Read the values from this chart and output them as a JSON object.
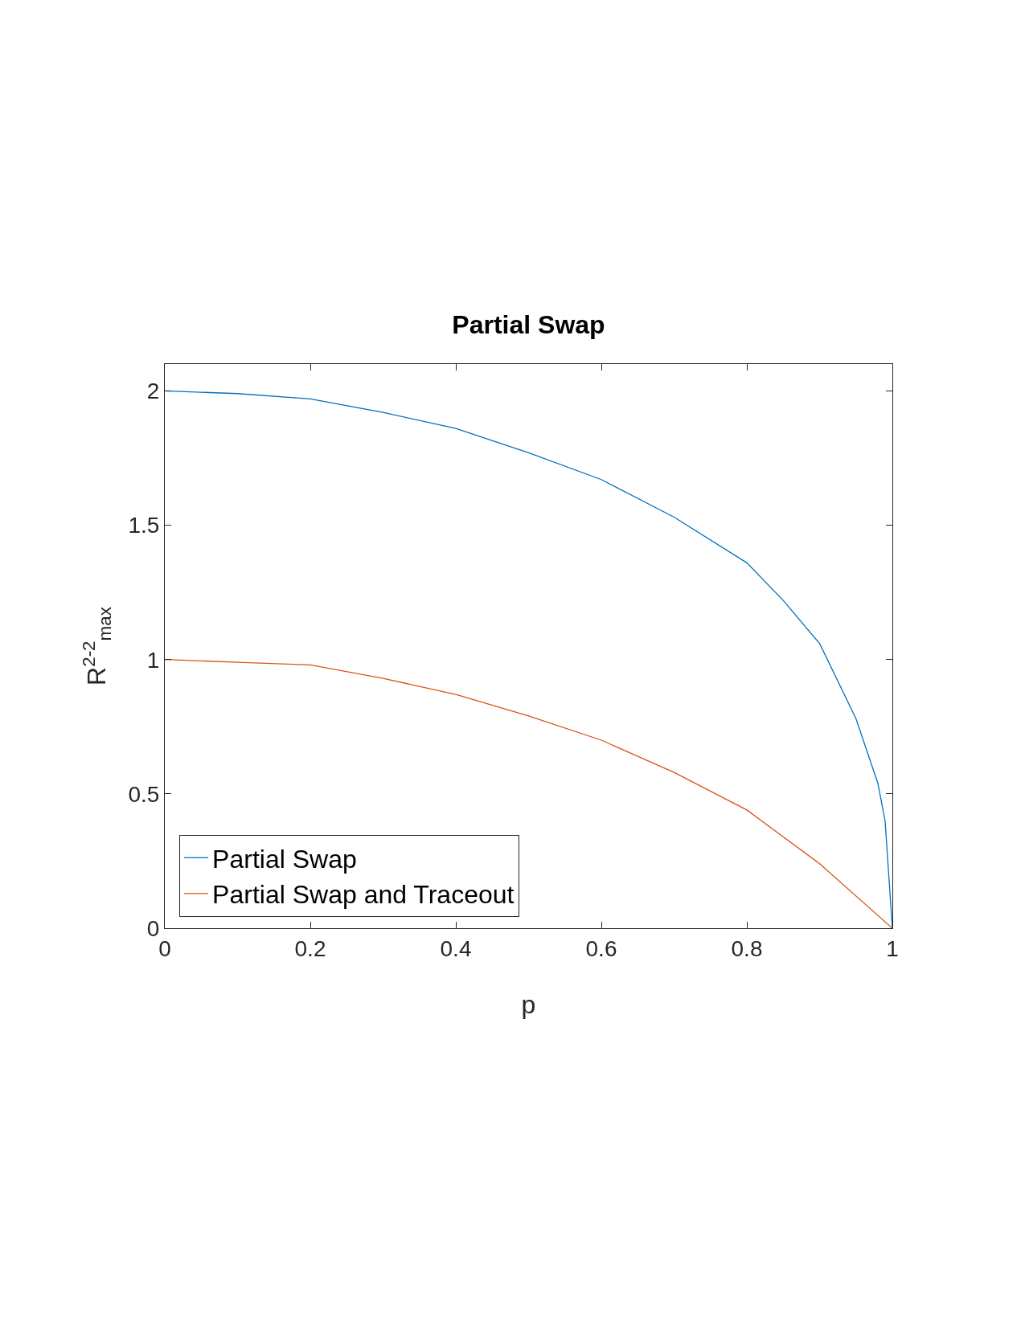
{
  "chart_data": {
    "type": "line",
    "title": "Partial Swap",
    "xlabel": "p",
    "ylabel": "R$^{2-2}$$_{max}$",
    "xlim": [
      0,
      1
    ],
    "xticks": [
      0,
      0.2,
      0.4,
      0.6,
      0.8,
      1
    ],
    "ylim": [
      0,
      2.1
    ],
    "yticks": [
      0,
      0.5,
      1,
      1.5,
      2
    ],
    "grid": false,
    "legend": "bottom left",
    "line_style": "solid",
    "marker": "none",
    "series": [
      {
        "name": "Partial Swap",
        "color": "#0072bd",
        "x": [
          0,
          0.1,
          0.2,
          0.3,
          0.4,
          0.5,
          0.6,
          0.7,
          0.8,
          0.85,
          0.9,
          0.95,
          0.98,
          0.99,
          1
        ],
        "values": [
          2,
          1.99,
          1.97,
          1.92,
          1.86,
          1.77,
          1.67,
          1.53,
          1.36,
          1.22,
          1.06,
          0.78,
          0.54,
          0.4,
          0
        ]
      },
      {
        "name": "Partial Swap and Traceout",
        "color": "#d95319",
        "x": [
          0,
          0.1,
          0.2,
          0.3,
          0.4,
          0.5,
          0.6,
          0.7,
          0.8,
          0.9,
          1
        ],
        "values": [
          1,
          0.99,
          0.98,
          0.93,
          0.87,
          0.79,
          0.7,
          0.58,
          0.44,
          0.24,
          0
        ]
      }
    ]
  }
}
